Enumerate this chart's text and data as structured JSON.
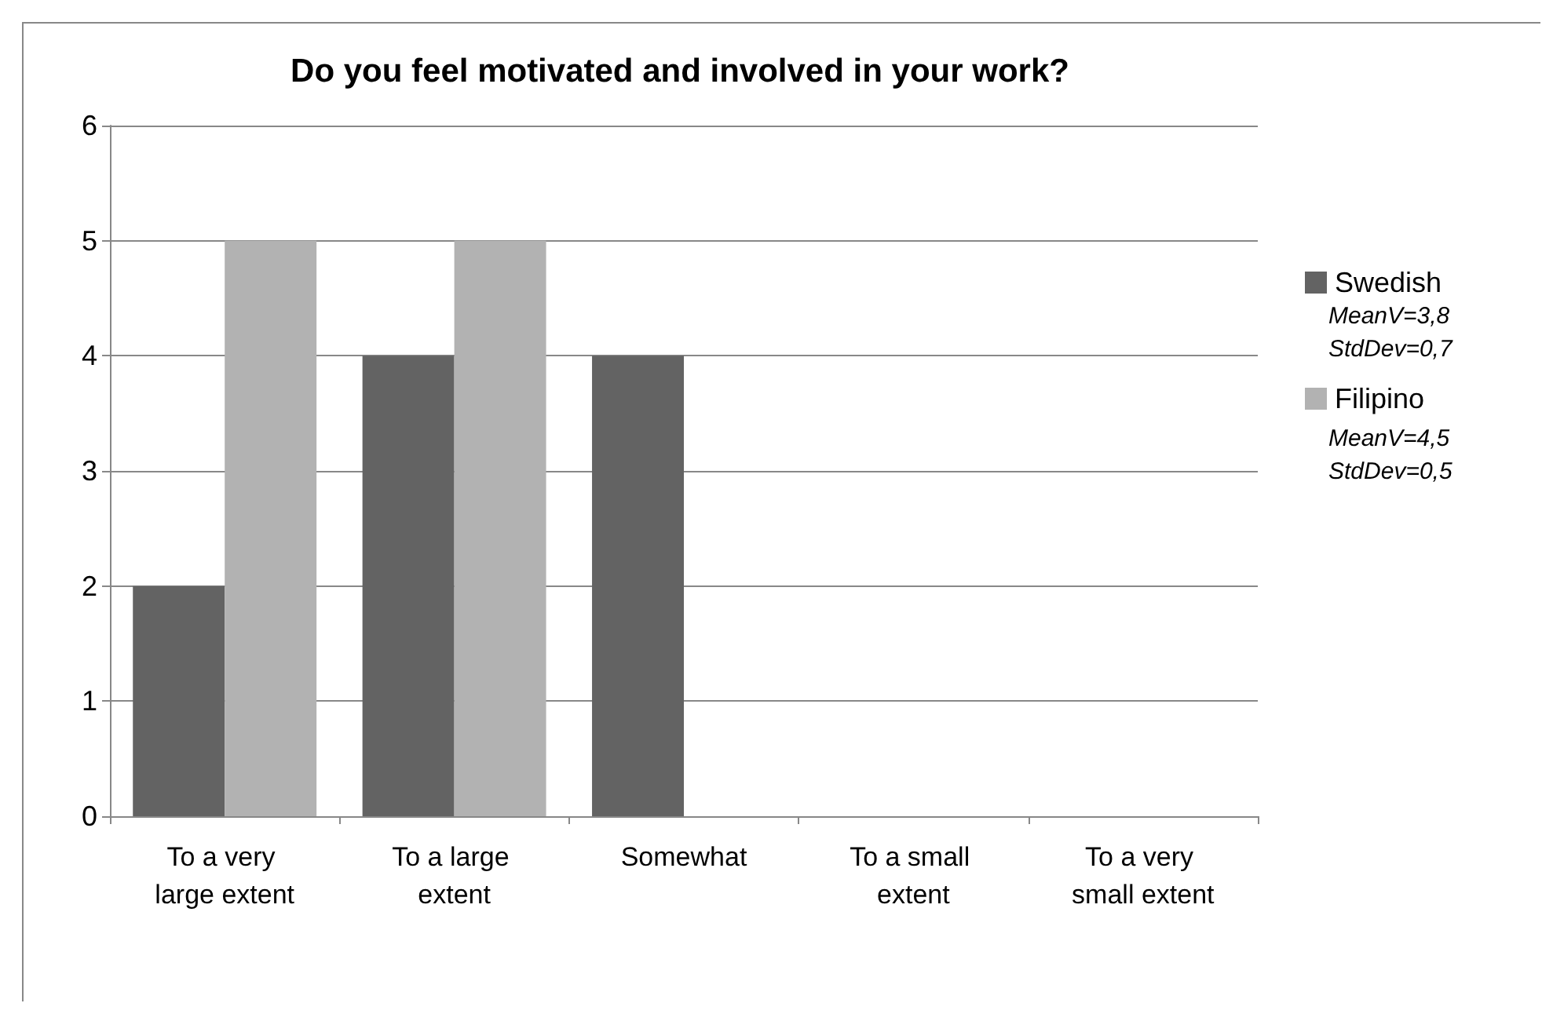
{
  "chart_data": {
    "type": "bar",
    "title": "Do you feel motivated and involved in your work?",
    "categories": [
      "To a very large extent",
      "To a large extent",
      "Somewhat",
      "To a small extent",
      "To a very small extent"
    ],
    "series": [
      {
        "name": "Swedish",
        "color": "#636363",
        "values": [
          2,
          4,
          4,
          0,
          0
        ]
      },
      {
        "name": "Filipino",
        "color": "#b2b2b2",
        "values": [
          5,
          5,
          0,
          0,
          0
        ]
      }
    ],
    "annotations": [
      "MeanV=3,8",
      "StdDev=0,7",
      "MeanV=4,5",
      "StdDev=0,5"
    ],
    "ylim": [
      0,
      6
    ],
    "yticks": [
      0,
      1,
      2,
      3,
      4,
      5,
      6
    ],
    "grid": "y",
    "legend": "right"
  }
}
